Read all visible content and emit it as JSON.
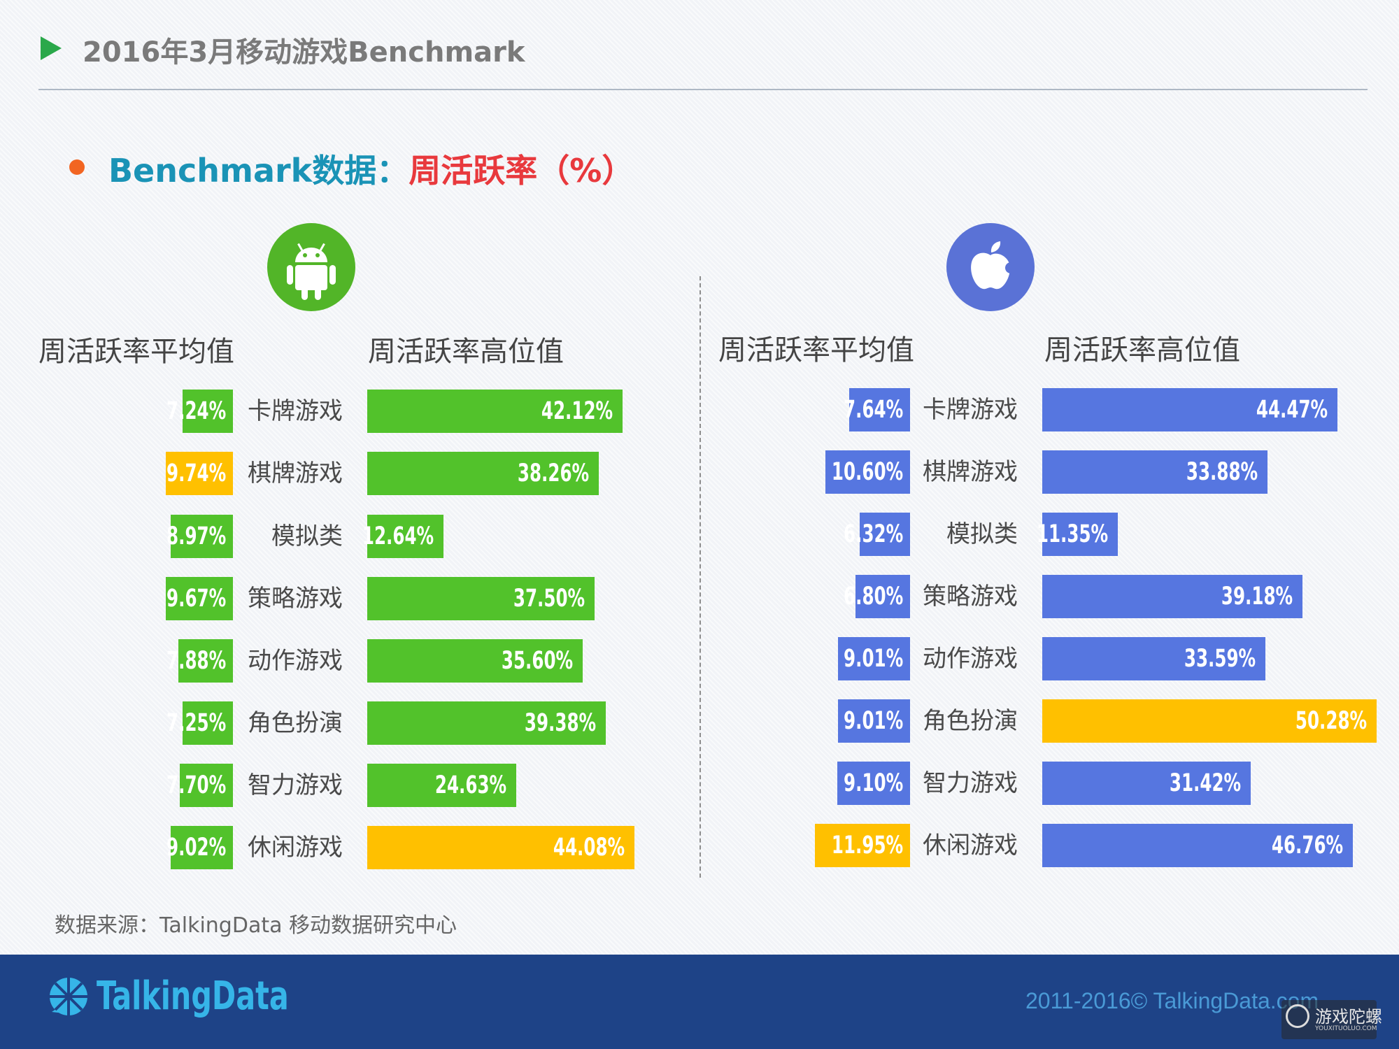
{
  "page": {
    "title": "2016年3月移动游戏Benchmark",
    "subtitle_a": "Benchmark数据：",
    "subtitle_b": "周活跃率（%）",
    "source": "数据来源：TalkingData 移动数据研究中心"
  },
  "footer": {
    "logo_text": "TalkingData",
    "copyright": "2011-2016© TalkingData.com",
    "watermark": "游戏陀螺",
    "watermark_sub": "YOUXITUOLUO.COM"
  },
  "colors": {
    "android_green": "#52c22b",
    "ios_blue": "#5676e0",
    "highlight_yellow": "#ffc000",
    "android_icon": "#52b528",
    "ios_icon": "#5a72d6"
  },
  "icons": {
    "android": "android-icon",
    "ios": "apple-icon"
  },
  "chart_data": [
    {
      "type": "bar",
      "platform": "android",
      "avg_header": "周活跃率平均值",
      "high_header": "周活跃率高位值",
      "categories": [
        "卡牌游戏",
        "棋牌游戏",
        "模拟类",
        "策略游戏",
        "动作游戏",
        "角色扮演",
        "智力游戏",
        "休闲游戏"
      ],
      "series": [
        {
          "name": "周活跃率平均值",
          "values": [
            7.24,
            9.74,
            8.97,
            9.67,
            7.88,
            7.25,
            7.7,
            9.02
          ],
          "labels": [
            "7.24%",
            "9.74%",
            "8.97%",
            "9.67%",
            "7.88%",
            "7.25%",
            "7.70%",
            "9.02%"
          ],
          "highlight_index": 1
        },
        {
          "name": "周活跃率高位值",
          "values": [
            42.12,
            38.26,
            12.64,
            37.5,
            35.6,
            39.38,
            24.63,
            44.08
          ],
          "labels": [
            "42.12%",
            "38.26%",
            "12.64%",
            "37.50%",
            "35.60%",
            "39.38%",
            "24.63%",
            "44.08%"
          ],
          "highlight_index": 7
        }
      ]
    },
    {
      "type": "bar",
      "platform": "ios",
      "avg_header": "周活跃率平均值",
      "high_header": "周活跃率高位值",
      "categories": [
        "卡牌游戏",
        "棋牌游戏",
        "模拟类",
        "策略游戏",
        "动作游戏",
        "角色扮演",
        "智力游戏",
        "休闲游戏"
      ],
      "series": [
        {
          "name": "周活跃率平均值",
          "values": [
            7.64,
            10.6,
            6.32,
            6.8,
            9.01,
            9.01,
            9.1,
            11.95
          ],
          "labels": [
            "7.64%",
            "10.60%",
            "6.32%",
            "6.80%",
            "9.01%",
            "9.01%",
            "9.10%",
            "11.95%"
          ],
          "highlight_index": 7
        },
        {
          "name": "周活跃率高位值",
          "values": [
            44.47,
            33.88,
            11.35,
            39.18,
            33.59,
            50.28,
            31.42,
            46.76
          ],
          "labels": [
            "44.47%",
            "33.88%",
            "11.35%",
            "39.18%",
            "33.59%",
            "50.28%",
            "31.42%",
            "46.76%"
          ],
          "highlight_index": 5
        }
      ]
    }
  ]
}
